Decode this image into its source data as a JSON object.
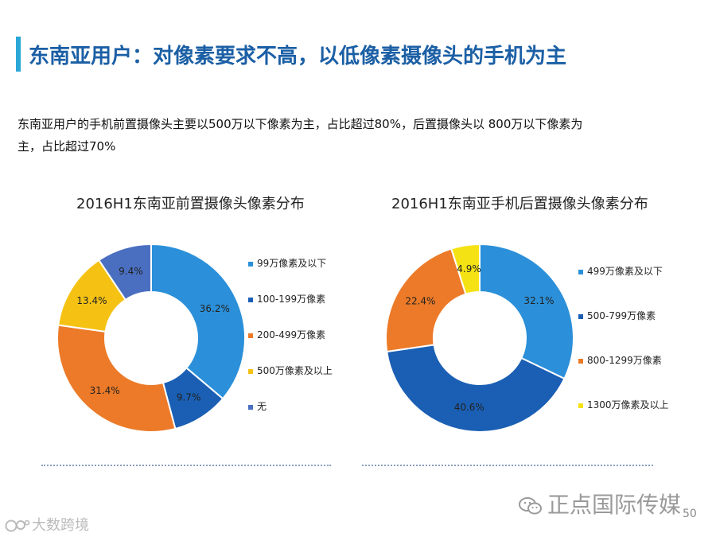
{
  "header": {
    "title": "东南亚用户：对像素要求不高，以低像素摄像头的手机为主",
    "accent_color": "#2aa7d6",
    "title_color": "#1b5fa5"
  },
  "description": "东南亚用户的手机前置摄像头主要以500万以下像素为主，占比超过80%，后置摄像头以 800万以下像素为主，占比超过70%",
  "chart_data": [
    {
      "type": "pie",
      "donut": true,
      "title": "2016H1东南亚前置摄像头像素分布",
      "categories": [
        "99万像素及以下",
        "100-199万像素",
        "200-499万像素",
        "500万像素及以上",
        "无"
      ],
      "values": [
        36.2,
        9.7,
        31.4,
        13.4,
        9.4
      ],
      "labels": [
        "36.2%",
        "9.7%",
        "31.4%",
        "13.4%",
        "9.4%"
      ],
      "colors": [
        "#2b90d9",
        "#1a5fb4",
        "#ec7a28",
        "#f5c214",
        "#4a6fc0"
      ],
      "legend_position": "right"
    },
    {
      "type": "pie",
      "donut": true,
      "title": "2016H1东南亚手机后置摄像头像素分布",
      "categories": [
        "499万像素及以下",
        "500-799万像素",
        "800-1299万像素",
        "1300万像素及以上"
      ],
      "values": [
        32.1,
        40.6,
        22.4,
        4.9
      ],
      "labels": [
        "32.1%",
        "40.6%",
        "22.4%",
        "4.9%"
      ],
      "colors": [
        "#2b90d9",
        "#1a5fb4",
        "#ec7a28",
        "#f5e214"
      ],
      "legend_position": "right"
    }
  ],
  "footer": {
    "wechat_label": "正点国际传媒",
    "page_number": "50",
    "logo_text": "大数跨境",
    "wechat_icon": "wechat-icon",
    "logo_icon": "brand-logo-icon"
  }
}
